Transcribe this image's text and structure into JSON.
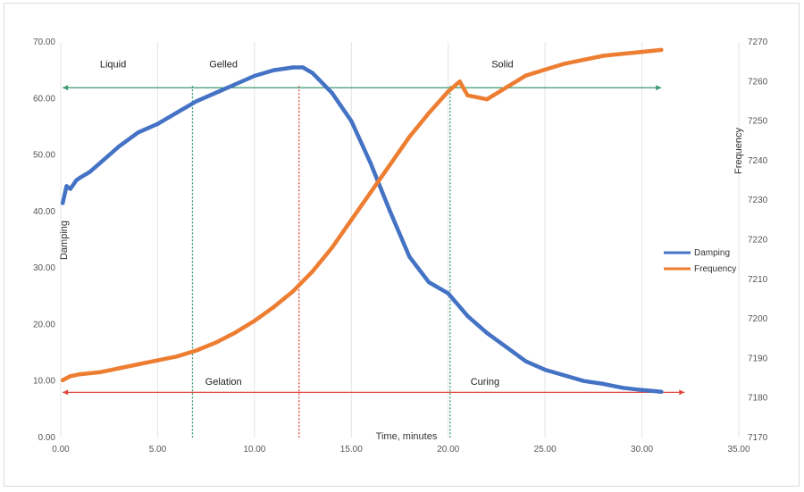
{
  "chart_data": {
    "type": "line",
    "title": "",
    "xlabel": "Time, minutes",
    "ylabel": "Damping",
    "y2label": "Frequency",
    "xlim": [
      0,
      35
    ],
    "ylim": [
      0,
      70
    ],
    "y2lim": [
      7170,
      7270
    ],
    "x_ticks": [
      "0.00",
      "5.00",
      "10.00",
      "15.00",
      "20.00",
      "25.00",
      "30.00",
      "35.00"
    ],
    "y_ticks": [
      "0.00",
      "10.00",
      "20.00",
      "30.00",
      "40.00",
      "50.00",
      "60.00",
      "70.00"
    ],
    "y2_ticks": [
      "7170",
      "7180",
      "7190",
      "7200",
      "7210",
      "7220",
      "7230",
      "7240",
      "7250",
      "7260",
      "7270"
    ],
    "grid": "vertical",
    "legend_position": "right",
    "series": [
      {
        "name": "Damping",
        "axis": "left",
        "color": "#4472C4",
        "x": [
          0.1,
          0.3,
          0.5,
          0.8,
          1.0,
          1.5,
          2.0,
          3.0,
          4.0,
          5.0,
          6.0,
          7.0,
          8.0,
          9.0,
          10.0,
          11.0,
          12.0,
          12.5,
          13.0,
          14.0,
          15.0,
          16.0,
          17.0,
          18.0,
          19.0,
          20.0,
          21.0,
          22.0,
          23.0,
          24.0,
          25.0,
          26.0,
          27.0,
          28.0,
          29.0,
          30.0,
          31.0
        ],
        "y": [
          41.5,
          44.5,
          44.0,
          45.5,
          46.0,
          47.0,
          48.5,
          51.5,
          54.0,
          55.5,
          57.5,
          59.5,
          61.0,
          62.5,
          64.0,
          65.0,
          65.5,
          65.5,
          64.5,
          61.0,
          56.0,
          48.5,
          40.0,
          32.0,
          27.5,
          25.5,
          21.5,
          18.5,
          16.0,
          13.5,
          12.0,
          11.0,
          10.0,
          9.5,
          8.8,
          8.4,
          8.1
        ]
      },
      {
        "name": "Frequency",
        "axis": "right",
        "color": "#ED7D31",
        "x": [
          0.1,
          0.5,
          1.0,
          2.0,
          3.0,
          4.0,
          5.0,
          6.0,
          7.0,
          8.0,
          9.0,
          10.0,
          11.0,
          12.0,
          13.0,
          14.0,
          15.0,
          16.0,
          17.0,
          18.0,
          19.0,
          20.0,
          20.6,
          21.0,
          22.0,
          23.0,
          24.0,
          25.0,
          26.0,
          27.0,
          28.0,
          29.0,
          30.0,
          31.0
        ],
        "y": [
          7184.5,
          7185.5,
          7186.0,
          7186.5,
          7187.5,
          7188.5,
          7189.5,
          7190.5,
          7192.0,
          7194.0,
          7196.5,
          7199.5,
          7203.0,
          7207.0,
          7212.0,
          7218.0,
          7225.0,
          7232.0,
          7239.0,
          7246.0,
          7252.0,
          7257.5,
          7260.0,
          7256.5,
          7255.5,
          7258.5,
          7261.5,
          7263.0,
          7264.5,
          7265.5,
          7266.5,
          7267.0,
          7267.5,
          7268.0
        ]
      }
    ],
    "markers": {
      "vertical_lines": [
        {
          "x": 6.8,
          "color": "#3a9a6e"
        },
        {
          "x": 12.3,
          "color": "#e0453a"
        },
        {
          "x": 20.1,
          "color": "#3a9a6e"
        }
      ],
      "green_range": {
        "y": 61.9,
        "x_start": 0.1,
        "x_end": 31.0,
        "color": "#3a9a6e"
      },
      "red_range": {
        "y": 8.0,
        "x_start": 0.1,
        "x_end": 32.2,
        "color": "#e0453a"
      }
    },
    "region_labels": [
      {
        "text": "Liquid",
        "x": 2.7,
        "y": 65.5
      },
      {
        "text": "Gelled",
        "x": 8.4,
        "y": 65.5
      },
      {
        "text": "Solid",
        "x": 22.8,
        "y": 65.5
      },
      {
        "text": "Gelation",
        "x": 8.4,
        "y": 9.3
      },
      {
        "text": "Curing",
        "x": 21.9,
        "y": 9.3
      }
    ]
  }
}
